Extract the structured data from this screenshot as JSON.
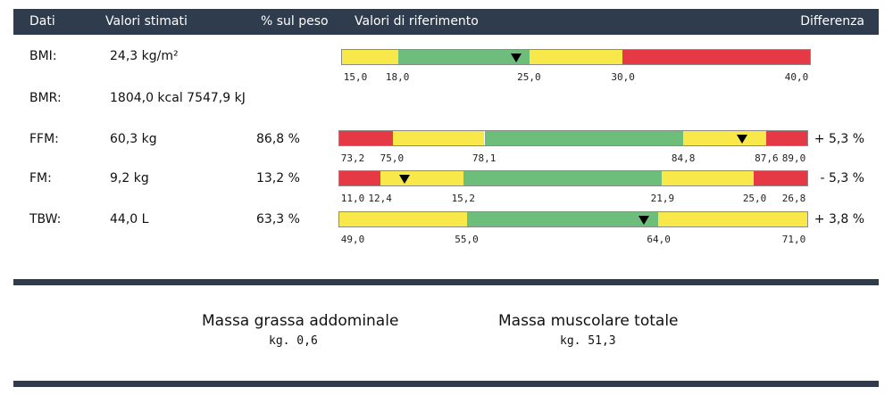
{
  "colors": {
    "header": "#2e3c4e",
    "red": "#e63946",
    "yellow": "#f8e84a",
    "green": "#6dbd7b"
  },
  "header": {
    "dati": "Dati",
    "valori_stimati": "Valori stimati",
    "peso": "% sul peso",
    "riferimento": "Valori di riferimento",
    "differenza": "Differenza"
  },
  "rows": [
    {
      "label": "BMI:",
      "value": "24,3 kg/m²",
      "percent": "",
      "diff": "",
      "segments": [
        {
          "from": 15.0,
          "to": 18.0,
          "color": "yellow"
        },
        {
          "from": 18.0,
          "to": 25.0,
          "color": "green"
        },
        {
          "from": 25.0,
          "to": 30.0,
          "color": "yellow"
        },
        {
          "from": 30.0,
          "to": 40.0,
          "color": "red"
        }
      ],
      "ticks": [
        "15,0",
        "18,0",
        "25,0",
        "30,0",
        "40,0"
      ],
      "marker": 24.3
    },
    {
      "label": "BMR:",
      "value": "1804,0 kcal 7547,9 kJ",
      "percent": "",
      "diff": ""
    },
    {
      "label": "FFM:",
      "value": "60,3 kg",
      "percent": "86,8 %",
      "diff": "+ 5,3 %",
      "segments": [
        {
          "from": 73.2,
          "to": 75.0,
          "color": "red"
        },
        {
          "from": 75.0,
          "to": 78.1,
          "color": "yellow"
        },
        {
          "from": 78.1,
          "to": 84.8,
          "color": "green"
        },
        {
          "from": 84.8,
          "to": 87.6,
          "color": "yellow"
        },
        {
          "from": 87.6,
          "to": 89.0,
          "color": "red"
        }
      ],
      "ticks": [
        "73,2",
        "75,0",
        "78,1",
        "84,8",
        "87,6",
        "89,0"
      ],
      "marker": 86.8
    },
    {
      "label": "FM:",
      "value": "9,2 kg",
      "percent": "13,2 %",
      "diff": "- 5,3 %",
      "segments": [
        {
          "from": 11.0,
          "to": 12.4,
          "color": "red"
        },
        {
          "from": 12.4,
          "to": 15.2,
          "color": "yellow"
        },
        {
          "from": 15.2,
          "to": 21.9,
          "color": "green"
        },
        {
          "from": 21.9,
          "to": 25.0,
          "color": "yellow"
        },
        {
          "from": 25.0,
          "to": 26.8,
          "color": "red"
        }
      ],
      "ticks": [
        "11,0",
        "12,4",
        "15,2",
        "21,9",
        "25,0",
        "26,8"
      ],
      "marker": 13.2
    },
    {
      "label": "TBW:",
      "value": "44,0 L",
      "percent": "63,3 %",
      "diff": "+ 3,8 %",
      "segments": [
        {
          "from": 49.0,
          "to": 55.0,
          "color": "yellow"
        },
        {
          "from": 55.0,
          "to": 64.0,
          "color": "green"
        },
        {
          "from": 64.0,
          "to": 71.0,
          "color": "yellow"
        }
      ],
      "ticks": [
        "49,0",
        "55,0",
        "64,0",
        "71,0"
      ],
      "marker": 63.3
    }
  ],
  "summary": {
    "abdominal_title": "Massa grassa addominale",
    "abdominal_value": "kg. 0,6",
    "muscle_title": "Massa muscolare totale",
    "muscle_value": "kg. 51,3"
  }
}
